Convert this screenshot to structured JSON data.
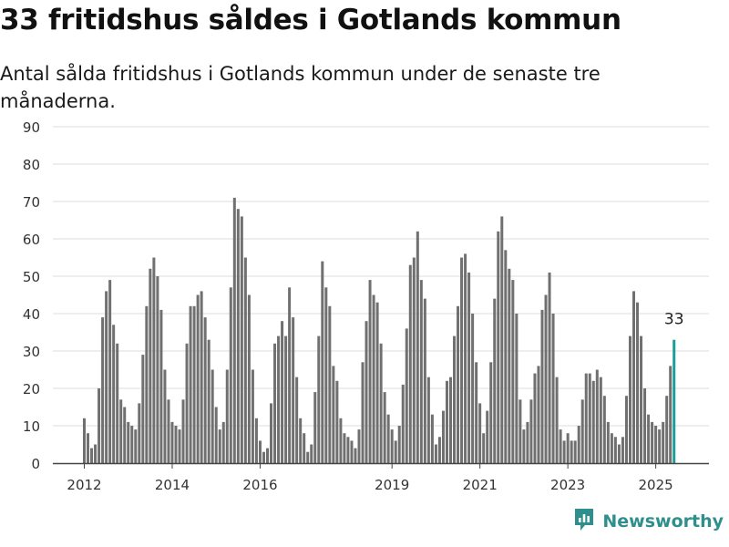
{
  "title": "33 fritidshus såldes i Gotlands kommun",
  "subtitle": "Antal sålda fritidshus i Gotlands kommun under de senaste tre månaderna.",
  "brand": {
    "name": "Newsworthy",
    "icon": "newsworthy-logo-icon"
  },
  "chart_data": {
    "type": "bar",
    "title": "33 fritidshus såldes i Gotlands kommun",
    "subtitle": "Antal sålda fritidshus i Gotlands kommun under de senaste tre månaderna.",
    "xlabel": "",
    "ylabel": "",
    "ylim": [
      0,
      90
    ],
    "yticks": [
      0,
      10,
      20,
      30,
      40,
      50,
      60,
      70,
      80,
      90
    ],
    "xticks": [
      "2012",
      "2014",
      "2016",
      "2019",
      "2021",
      "2023",
      "2025"
    ],
    "grid": true,
    "colors": {
      "bar": "#707070",
      "highlight": "#1a9e96",
      "grid": "#dddddd",
      "axis": "#444444"
    },
    "highlight_label": "33",
    "series": [
      {
        "values": [
          12,
          8,
          4,
          5,
          20,
          39,
          46,
          49,
          37,
          32,
          17,
          15,
          11,
          10,
          9,
          16,
          29,
          42,
          52,
          55,
          50,
          41,
          25,
          17,
          11,
          10,
          9,
          17,
          32,
          42,
          42,
          45,
          46,
          39,
          33,
          25,
          15,
          9,
          11,
          25,
          47,
          71,
          68,
          66,
          55,
          45,
          25,
          12,
          6,
          3,
          4,
          16,
          32,
          34,
          38,
          34,
          47,
          39,
          23,
          12,
          8,
          3,
          5,
          19,
          34,
          54,
          47,
          42,
          26,
          22,
          12,
          8,
          7,
          6,
          4,
          9,
          27,
          38,
          49,
          45,
          43,
          32,
          19,
          13,
          9,
          6,
          10,
          21,
          36,
          53,
          55,
          62,
          49,
          44,
          23,
          13,
          5,
          7,
          14,
          22,
          23,
          34,
          42,
          55,
          56,
          51,
          40,
          27,
          16,
          8,
          14,
          27,
          44,
          62,
          66,
          57,
          52,
          49,
          40,
          17,
          9,
          11,
          17,
          24,
          26,
          41,
          45,
          51,
          40,
          23,
          9,
          6,
          8,
          6,
          6,
          10,
          17,
          24,
          24,
          22,
          25,
          23,
          18,
          11,
          8,
          7,
          5,
          7,
          18,
          34,
          46,
          43,
          34,
          20,
          13,
          11,
          10,
          9,
          11,
          18,
          26,
          33
        ]
      }
    ]
  }
}
